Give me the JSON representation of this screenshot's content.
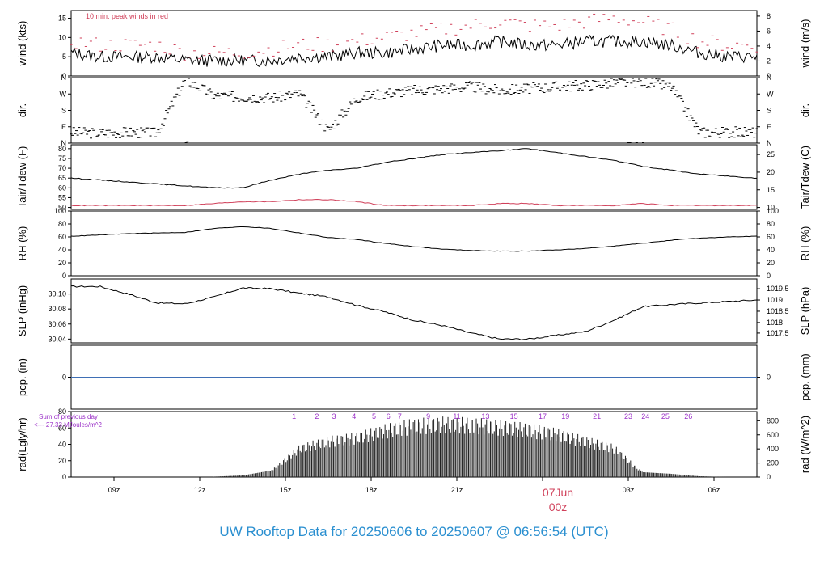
{
  "footer": {
    "title": "UW Rooftop Data for 20250606  to  20250607 @ 06:56:54  (UTC)"
  },
  "date_marker": {
    "date": "07Jun",
    "hour": "00z"
  },
  "colors": {
    "series": "#000000",
    "peak": "#d0405a",
    "dew": "#d0405a",
    "precip": "#3f6fb5",
    "hour_labels": "#9b30c8",
    "title": "#2a8fd0"
  },
  "chart_data": [
    {
      "id": "wind",
      "type": "line",
      "ylabel": "wind (kts)",
      "ylabel_right": "wind (m/s)",
      "ylim": [
        0,
        17
      ],
      "yticks_left": [
        "0",
        "5",
        "10",
        "15"
      ],
      "yticks_left_values": [
        0,
        5,
        10,
        15
      ],
      "yticks_right": [
        "0",
        "2",
        "4",
        "6",
        "8"
      ],
      "yticks_right_values": [
        0,
        3.89,
        7.78,
        11.66,
        15.55
      ],
      "annotation": "10 min. peak winds in red",
      "x_hours": [
        0,
        1,
        2,
        3,
        4,
        5,
        6,
        7,
        8,
        9,
        10,
        11,
        12,
        13,
        14,
        15,
        16,
        17,
        18,
        19,
        20,
        21,
        22,
        23,
        24
      ],
      "series": [
        {
          "values": [
            6,
            5,
            5,
            5,
            4,
            4,
            4,
            4,
            5,
            5,
            6,
            6,
            7,
            8,
            8,
            9,
            8,
            8,
            9,
            9,
            9,
            8,
            6,
            5,
            5
          ]
        },
        {
          "values": [
            9,
            8,
            8,
            8,
            6,
            6,
            6,
            7,
            8,
            8,
            9,
            10,
            11,
            12,
            13,
            14,
            13,
            13,
            14,
            15,
            14,
            12,
            9,
            8,
            8
          ]
        }
      ]
    },
    {
      "id": "dir",
      "type": "scatter",
      "ylabel": "dir.",
      "ylabel_right": "dir.",
      "ylim": [
        0,
        360
      ],
      "yticks_left": [
        "N",
        "E",
        "S",
        "W",
        "N"
      ],
      "yticks_left_values": [
        0,
        90,
        180,
        270,
        360
      ],
      "yticks_right": [
        "N",
        "E",
        "S",
        "W",
        "N"
      ],
      "yticks_right_values": [
        0,
        90,
        180,
        270,
        360
      ],
      "x_hours": [
        0,
        1,
        2,
        3,
        4,
        5,
        6,
        7,
        8,
        9,
        10,
        11,
        12,
        13,
        14,
        15,
        16,
        17,
        18,
        19,
        20,
        21,
        22,
        23,
        24
      ],
      "series": [
        {
          "values": [
            60,
            55,
            60,
            55,
            350,
            260,
            255,
            250,
            270,
            70,
            250,
            275,
            290,
            300,
            310,
            290,
            300,
            310,
            320,
            330,
            340,
            310,
            60,
            60,
            60
          ]
        }
      ]
    },
    {
      "id": "temp",
      "type": "line",
      "ylabel": "Tair/Tdew (F)",
      "ylabel_right": "Tair/Tdew (C)",
      "ylim": [
        49,
        82
      ],
      "yticks_left": [
        "50",
        "55",
        "60",
        "65",
        "70",
        "75",
        "80"
      ],
      "yticks_left_values": [
        50,
        55,
        60,
        65,
        70,
        75,
        80
      ],
      "yticks_right": [
        "10",
        "15",
        "20",
        "25"
      ],
      "yticks_right_values": [
        50,
        59,
        68,
        77
      ],
      "x_hours": [
        0,
        1,
        2,
        3,
        4,
        5,
        6,
        7,
        8,
        9,
        10,
        11,
        12,
        13,
        14,
        15,
        16,
        17,
        18,
        19,
        20,
        21,
        22,
        23,
        24
      ],
      "series": [
        {
          "values": [
            65,
            64,
            63,
            62,
            61,
            60,
            60,
            64,
            67,
            69,
            70,
            73,
            75,
            77,
            78,
            79,
            80,
            78,
            76,
            74,
            71,
            69,
            67,
            66,
            65
          ]
        },
        {
          "values": [
            51,
            51,
            51,
            51,
            51,
            52,
            53,
            53,
            54,
            54,
            53,
            51,
            51,
            51,
            51,
            52,
            52,
            51,
            51,
            51,
            52,
            51,
            51,
            51,
            51
          ]
        }
      ]
    },
    {
      "id": "rh",
      "type": "line",
      "ylabel": "RH (%)",
      "ylabel_right": "RH (%)",
      "ylim": [
        0,
        100
      ],
      "yticks_left": [
        "0",
        "20",
        "40",
        "60",
        "80",
        "100"
      ],
      "yticks_left_values": [
        0,
        20,
        40,
        60,
        80,
        100
      ],
      "yticks_right": [
        "0",
        "20",
        "40",
        "60",
        "80",
        "100"
      ],
      "yticks_right_values": [
        0,
        20,
        40,
        60,
        80,
        100
      ],
      "x_hours": [
        0,
        1,
        2,
        3,
        4,
        5,
        6,
        7,
        8,
        9,
        10,
        11,
        12,
        13,
        14,
        15,
        16,
        17,
        18,
        19,
        20,
        21,
        22,
        23,
        24
      ],
      "series": [
        {
          "values": [
            61,
            63,
            65,
            66,
            67,
            73,
            76,
            73,
            66,
            59,
            56,
            50,
            45,
            41,
            39,
            38,
            38,
            40,
            42,
            46,
            50,
            55,
            58,
            60,
            61
          ]
        }
      ]
    },
    {
      "id": "slp",
      "type": "line",
      "ylabel": "SLP (inHg)",
      "ylabel_right": "SLP (hPa)",
      "ylim": [
        30.035,
        30.12
      ],
      "yticks_left": [
        "30.04",
        "30.06",
        "30.08",
        "30.10"
      ],
      "yticks_left_values": [
        30.04,
        30.06,
        30.08,
        30.1
      ],
      "yticks_right": [
        "1017.5",
        "1018",
        "1018.5",
        "1019",
        "1019.5"
      ],
      "yticks_right_values": [
        30.048,
        30.062,
        30.077,
        30.092,
        30.107
      ],
      "x_hours": [
        0,
        1,
        2,
        3,
        4,
        5,
        6,
        7,
        8,
        9,
        10,
        11,
        12,
        13,
        14,
        15,
        16,
        17,
        18,
        19,
        20,
        21,
        22,
        23,
        24
      ],
      "series": [
        {
          "values": [
            30.11,
            30.11,
            30.1,
            30.088,
            30.087,
            30.096,
            30.108,
            30.107,
            30.101,
            30.096,
            30.085,
            30.076,
            30.065,
            30.058,
            30.048,
            30.04,
            30.04,
            30.045,
            30.05,
            30.065,
            30.083,
            30.086,
            30.088,
            30.09,
            30.092
          ]
        }
      ]
    },
    {
      "id": "pcp",
      "type": "line",
      "ylabel": "pcp. (in)",
      "ylabel_right": "pcp. (mm)",
      "ylim": [
        -1,
        1
      ],
      "yticks_left": [
        "0"
      ],
      "yticks_left_values": [
        0
      ],
      "yticks_right": [
        "0"
      ],
      "yticks_right_values": [
        0
      ],
      "x_hours": [
        0,
        24
      ],
      "series": [
        {
          "values": [
            0,
            0
          ]
        }
      ]
    },
    {
      "id": "rad",
      "type": "bar",
      "ylabel": "rad(Lgly/hr)",
      "ylabel_right": "rad (W/m^2)",
      "ylim": [
        0,
        80
      ],
      "yticks_left": [
        "0",
        "20",
        "40",
        "60",
        "80"
      ],
      "yticks_left_values": [
        0,
        20,
        40,
        60,
        80
      ],
      "yticks_right": [
        "0",
        "200",
        "400",
        "600",
        "800"
      ],
      "yticks_right_values": [
        0,
        17.2,
        34.4,
        51.6,
        68.8
      ],
      "annotation_top": "Sum of previous day",
      "annotation_bottom": "<--- 27.33 MJoules/m^2",
      "x_hours": [
        5,
        6,
        7,
        8,
        9,
        10,
        11,
        12,
        13,
        14,
        15,
        16,
        17,
        18,
        19,
        20,
        21,
        22,
        23
      ],
      "values": [
        0.5,
        2,
        8,
        40,
        50,
        55,
        65,
        72,
        74,
        73,
        70,
        66,
        60,
        50,
        40,
        6,
        4,
        1,
        0
      ],
      "hour_labels": [
        "1",
        "2",
        "3",
        "4",
        "5",
        "6",
        "7",
        "9",
        "11",
        "13",
        "15",
        "17",
        "19",
        "21",
        "23",
        "24",
        "25",
        "26"
      ],
      "hour_label_hours": [
        7.8,
        8.6,
        9.2,
        9.9,
        10.6,
        11.1,
        11.5,
        12.5,
        13.5,
        14.5,
        15.5,
        16.5,
        17.3,
        18.4,
        19.5,
        20.1,
        20.8,
        21.6
      ]
    }
  ],
  "x_axis": {
    "start_hour_utc": 7.5,
    "span_hours": 24,
    "ticks": [
      "09z",
      "12z",
      "15z",
      "18z",
      "21z",
      "03z",
      "06z"
    ],
    "tick_hours": [
      1.5,
      4.5,
      7.5,
      10.5,
      13.5,
      19.5,
      22.5
    ]
  }
}
